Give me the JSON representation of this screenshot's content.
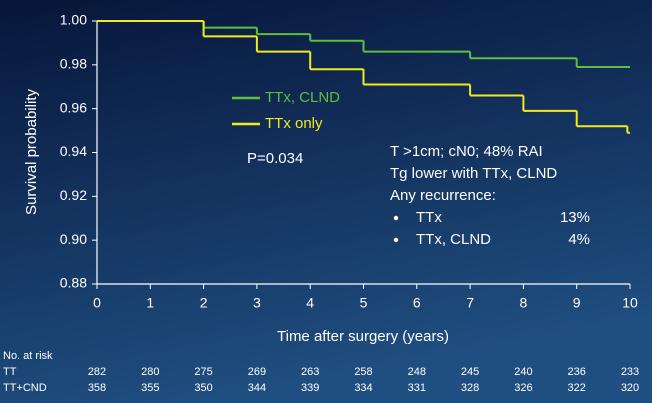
{
  "chart_data": {
    "type": "step",
    "y_label": "Survival probability",
    "x_label": "Time after surgery (years)",
    "xlim": [
      0,
      10
    ],
    "ylim": [
      0.88,
      1.0
    ],
    "xticks": [
      0,
      1,
      2,
      3,
      4,
      5,
      6,
      7,
      8,
      9,
      10
    ],
    "yticks": [
      {
        "value": 0.88,
        "label": "0.88"
      },
      {
        "value": 0.9,
        "label": "0.90"
      },
      {
        "value": 0.92,
        "label": "0.92"
      },
      {
        "value": 0.94,
        "label": "0.94"
      },
      {
        "value": 0.96,
        "label": "0.96"
      },
      {
        "value": 0.98,
        "label": "0.98"
      },
      {
        "value": 1.0,
        "label": "1.00"
      }
    ],
    "series": [
      {
        "name": "TTx, CLND",
        "color": "#5fbf3a",
        "x": [
          0,
          2,
          3,
          4,
          5,
          7,
          9
        ],
        "values": [
          1.0,
          0.997,
          0.994,
          0.991,
          0.986,
          0.983,
          0.979
        ]
      },
      {
        "name": "TTx only",
        "color": "#f2ea1f",
        "x": [
          0,
          2,
          3,
          4,
          5,
          7,
          8,
          9,
          9.95
        ],
        "values": [
          1.0,
          0.993,
          0.986,
          0.978,
          0.971,
          0.966,
          0.959,
          0.952,
          0.949
        ]
      }
    ],
    "annotations": {
      "p_value": "P=0.034",
      "notes": [
        "T >1cm; cN0; 48% RAI",
        "Tg lower  with TTx, CLND",
        "Any recurrence:"
      ],
      "recurrence": [
        {
          "label": "TTx",
          "value": "13%"
        },
        {
          "label": "TTx, CLND",
          "value": "4%"
        }
      ]
    },
    "risk_table": {
      "title": "No. at risk",
      "rows": [
        {
          "label": "TT",
          "values": [
            282,
            280,
            275,
            269,
            263,
            258,
            248,
            245,
            240,
            236,
            233
          ]
        },
        {
          "label": "TT+CND",
          "values": [
            358,
            355,
            350,
            344,
            339,
            334,
            331,
            328,
            326,
            322,
            320
          ]
        }
      ]
    }
  }
}
